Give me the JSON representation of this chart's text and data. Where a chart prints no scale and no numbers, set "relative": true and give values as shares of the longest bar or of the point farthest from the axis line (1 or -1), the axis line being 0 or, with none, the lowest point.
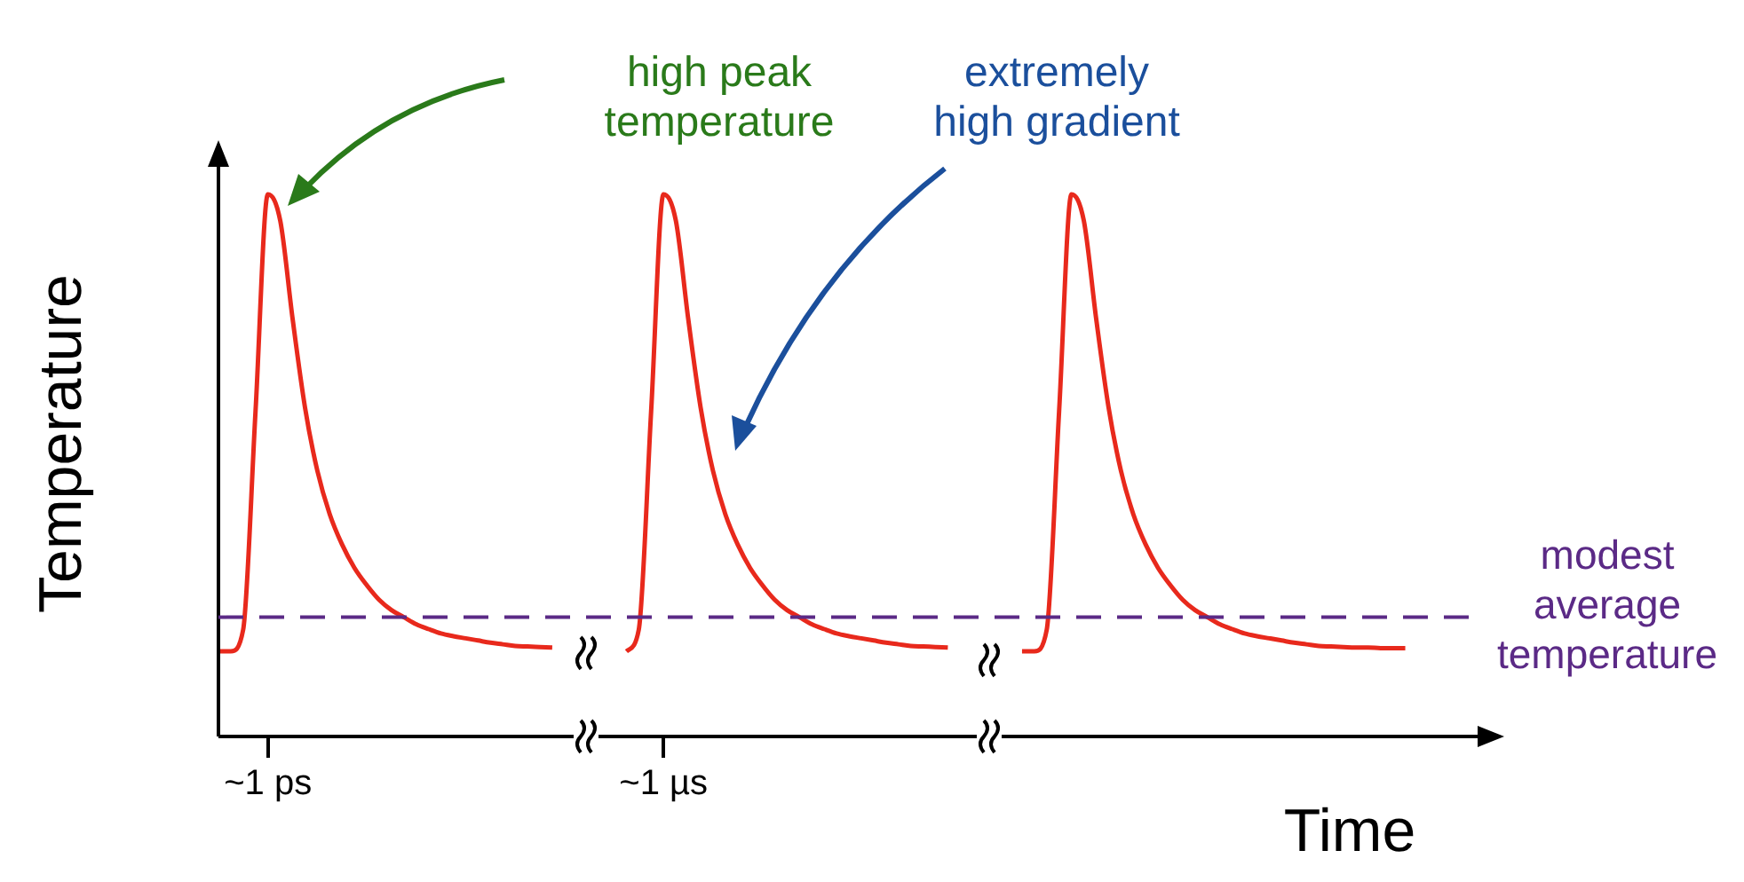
{
  "chart_data": {
    "type": "line",
    "relative": true,
    "xlabel": "Time",
    "ylabel": "Temperature",
    "categories": [
      null,
      null,
      null,
      null,
      "~1 ps",
      null,
      null,
      null,
      null,
      null,
      null,
      null,
      null,
      null,
      null,
      null,
      null,
      null,
      null,
      null,
      null,
      null,
      null,
      null,
      null,
      null,
      null,
      null,
      null,
      null,
      null,
      null,
      null,
      null,
      null,
      null,
      "~1 µs",
      null,
      null,
      null,
      null,
      null,
      null,
      null,
      null,
      null,
      null,
      null,
      null,
      null,
      null,
      null,
      null,
      null,
      null,
      null,
      null,
      null,
      null,
      null,
      null,
      null,
      null,
      null,
      null,
      null,
      null,
      null,
      null,
      null,
      null,
      null,
      null,
      null,
      null,
      null,
      null,
      null,
      null,
      null,
      null,
      null,
      null,
      null,
      null,
      null,
      null,
      null,
      null,
      null,
      null,
      null,
      null,
      null,
      null,
      null,
      null
    ],
    "series": [
      {
        "color": "#e8291c",
        "values": [
          0.157,
          0.157,
          0.197,
          0.6,
          1,
          0.951,
          0.77,
          0.607,
          0.49,
          0.41,
          0.354,
          0.311,
          0.279,
          0.252,
          0.233,
          0.22,
          0.207,
          0.198,
          0.19,
          0.185,
          0.181,
          0.177,
          0.173,
          0.17,
          0.167,
          0.166,
          0.165,
          0.164,
          null,
          null,
          null,
          null,
          null,
          0.157,
          0.197,
          0.6,
          1,
          0.951,
          0.77,
          0.607,
          0.49,
          0.41,
          0.354,
          0.311,
          0.279,
          0.252,
          0.233,
          0.22,
          0.207,
          0.198,
          0.19,
          0.185,
          0.181,
          0.177,
          0.173,
          0.17,
          0.167,
          0.166,
          0.165,
          0.164,
          null,
          null,
          null,
          null,
          null,
          0.157,
          0.157,
          0.197,
          0.6,
          1,
          0.951,
          0.77,
          0.607,
          0.49,
          0.41,
          0.354,
          0.311,
          0.279,
          0.252,
          0.233,
          0.22,
          0.207,
          0.198,
          0.19,
          0.185,
          0.181,
          0.177,
          0.173,
          0.17,
          0.167,
          0.166,
          0.165,
          0.164,
          0.164,
          0.163,
          0.163,
          0.163
        ]
      }
    ],
    "ref_lines": [
      {
        "axis": "y",
        "value": 0.22,
        "label": "modest\naverage\ntemperature",
        "color": "#5b2a86",
        "line_style": "dashed"
      }
    ],
    "annotations": [
      "high peak\ntemperature",
      "extremely\nhigh gradient"
    ],
    "legend": false
  }
}
